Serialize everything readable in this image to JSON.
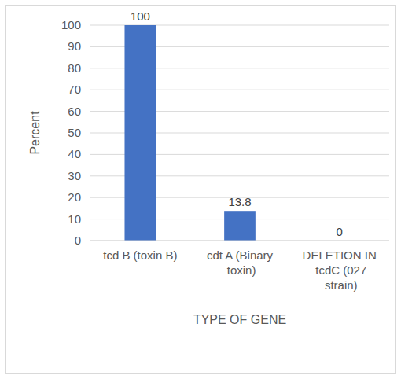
{
  "chart_data": {
    "type": "bar",
    "x_label": "TYPE OF GENE",
    "y_label": "Percent",
    "categories": [
      "tcd B (toxin B)",
      "cdt A (Binary toxin)",
      "DELETION IN tcdC (027 strain)"
    ],
    "values": [
      100,
      13.8,
      0
    ],
    "color": "#4472c4",
    "ylim": [
      0,
      100
    ],
    "yticks": [
      0,
      10,
      20,
      30,
      40,
      50,
      60,
      70,
      80,
      90,
      100
    ],
    "grid": true,
    "data_labels": true
  }
}
